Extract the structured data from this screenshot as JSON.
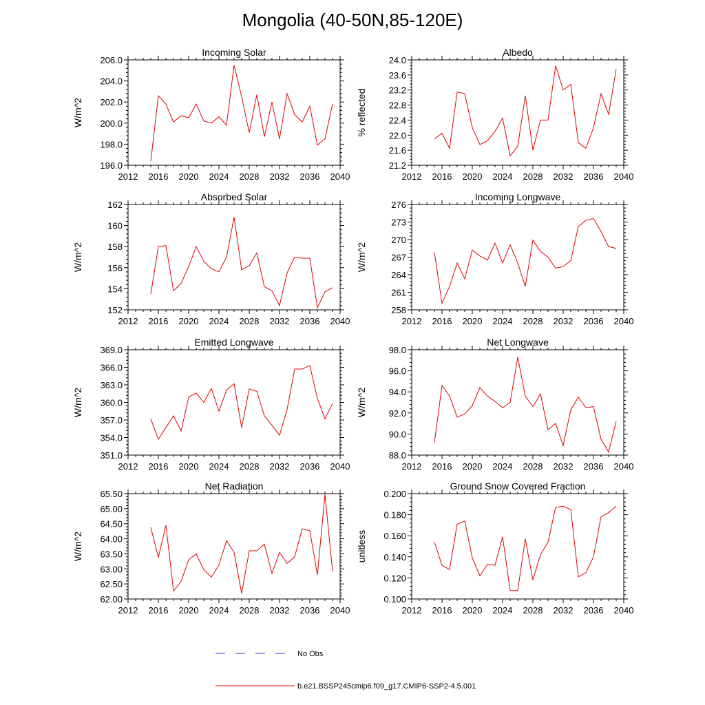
{
  "title": "Mongolia (40-50N,85-120E)",
  "legend": {
    "obs_label": "No Obs",
    "model_label": "b.e21.BSSP245cmip6.f09_g17.CMIP6-SSP2-4.5.001",
    "obs_color": "#3344cc",
    "model_color": "#e00000"
  },
  "chart_data": [
    {
      "type": "line",
      "title": "Incoming Solar",
      "ylabel": "W/m^2",
      "xlim": [
        2012,
        2040
      ],
      "ylim": [
        196.0,
        206.0
      ],
      "xticks": [
        "2012",
        "2016",
        "2020",
        "2024",
        "2028",
        "2032",
        "2036",
        "2040"
      ],
      "yticks": [
        "196.0",
        "198.0",
        "200.0",
        "202.0",
        "204.0",
        "206.0"
      ],
      "x": [
        2015,
        2016,
        2017,
        2018,
        2019,
        2020,
        2021,
        2022,
        2023,
        2024,
        2025,
        2026,
        2027,
        2028,
        2029,
        2030,
        2031,
        2032,
        2033,
        2034,
        2035,
        2036,
        2037,
        2038,
        2039
      ],
      "series": [
        {
          "values": [
            196.4,
            202.6,
            201.8,
            200.1,
            200.7,
            200.5,
            201.8,
            200.2,
            200.0,
            200.6,
            199.8,
            205.5,
            202.5,
            199.1,
            202.7,
            198.7,
            202.0,
            198.5,
            202.8,
            200.8,
            200.1,
            201.6,
            197.9,
            198.5,
            201.8
          ]
        }
      ]
    },
    {
      "type": "line",
      "title": "Albedo",
      "ylabel": "% reflected",
      "xlim": [
        2012,
        2040
      ],
      "ylim": [
        21.2,
        24.0
      ],
      "xticks": [
        "2012",
        "2016",
        "2020",
        "2024",
        "2028",
        "2032",
        "2036",
        "2040"
      ],
      "yticks": [
        "21.2",
        "21.6",
        "22.0",
        "22.4",
        "22.8",
        "23.2",
        "23.6",
        "24.0"
      ],
      "x": [
        2015,
        2016,
        2017,
        2018,
        2019,
        2020,
        2021,
        2022,
        2023,
        2024,
        2025,
        2026,
        2027,
        2028,
        2029,
        2030,
        2031,
        2032,
        2033,
        2034,
        2035,
        2036,
        2037,
        2038,
        2039
      ],
      "series": [
        {
          "values": [
            21.9,
            22.05,
            21.65,
            23.15,
            23.1,
            22.2,
            21.75,
            21.85,
            22.1,
            22.45,
            21.45,
            21.7,
            23.05,
            21.6,
            22.4,
            22.4,
            23.85,
            23.2,
            23.35,
            21.8,
            21.65,
            22.2,
            23.1,
            22.55,
            23.75
          ]
        }
      ]
    },
    {
      "type": "line",
      "title": "Absorbed Solar",
      "ylabel": "W/m^2",
      "xlim": [
        2012,
        2040
      ],
      "ylim": [
        152,
        162
      ],
      "xticks": [
        "2012",
        "2016",
        "2020",
        "2024",
        "2028",
        "2032",
        "2036",
        "2040"
      ],
      "yticks": [
        "152",
        "154",
        "156",
        "158",
        "160",
        "162"
      ],
      "x": [
        2015,
        2016,
        2017,
        2018,
        2019,
        2020,
        2021,
        2022,
        2023,
        2024,
        2025,
        2026,
        2027,
        2028,
        2029,
        2030,
        2031,
        2032,
        2033,
        2034,
        2035,
        2036,
        2037,
        2038,
        2039
      ],
      "series": [
        {
          "values": [
            153.5,
            158.0,
            158.1,
            153.8,
            154.5,
            156.1,
            158.0,
            156.6,
            155.9,
            155.6,
            157.0,
            160.8,
            155.8,
            156.2,
            157.4,
            154.2,
            153.8,
            152.4,
            155.5,
            157.0,
            156.9,
            156.9,
            152.2,
            153.7,
            154.1
          ]
        }
      ]
    },
    {
      "type": "line",
      "title": "Incoming Longwave",
      "ylabel": "W/m^2",
      "xlim": [
        2012,
        2040
      ],
      "ylim": [
        258,
        276
      ],
      "xticks": [
        "2012",
        "2016",
        "2020",
        "2024",
        "2028",
        "2032",
        "2036",
        "2040"
      ],
      "yticks": [
        "258",
        "261",
        "264",
        "267",
        "270",
        "273",
        "276"
      ],
      "x": [
        2015,
        2016,
        2017,
        2018,
        2019,
        2020,
        2021,
        2022,
        2023,
        2024,
        2025,
        2026,
        2027,
        2028,
        2029,
        2030,
        2031,
        2032,
        2033,
        2034,
        2035,
        2036,
        2037,
        2038,
        2039
      ],
      "series": [
        {
          "values": [
            267.8,
            259.1,
            262.0,
            266.0,
            263.3,
            268.2,
            267.2,
            266.5,
            269.4,
            266.0,
            269.1,
            266.0,
            262.0,
            269.9,
            268.0,
            267.0,
            265.1,
            265.4,
            266.4,
            272.2,
            273.3,
            273.6,
            271.4,
            268.8,
            268.5
          ]
        }
      ]
    },
    {
      "type": "line",
      "title": "Emitted Longwave",
      "ylabel": "W/m^2",
      "xlim": [
        2012,
        2040
      ],
      "ylim": [
        351.0,
        369.0
      ],
      "xticks": [
        "2012",
        "2016",
        "2020",
        "2024",
        "2028",
        "2032",
        "2036",
        "2040"
      ],
      "yticks": [
        "351.0",
        "354.0",
        "357.0",
        "360.0",
        "363.0",
        "366.0",
        "369.0"
      ],
      "x": [
        2015,
        2016,
        2017,
        2018,
        2019,
        2020,
        2021,
        2022,
        2023,
        2024,
        2025,
        2026,
        2027,
        2028,
        2029,
        2030,
        2031,
        2032,
        2033,
        2034,
        2035,
        2036,
        2037,
        2038,
        2039
      ],
      "series": [
        {
          "values": [
            357.2,
            353.7,
            355.7,
            357.7,
            355.1,
            360.9,
            361.6,
            360.0,
            362.4,
            358.5,
            362.1,
            363.2,
            355.7,
            362.3,
            361.9,
            357.7,
            356.1,
            354.4,
            358.8,
            365.7,
            365.7,
            366.3,
            360.7,
            357.2,
            359.8
          ]
        }
      ]
    },
    {
      "type": "line",
      "title": "Net Longwave",
      "ylabel": "W/m^2",
      "xlim": [
        2012,
        2040
      ],
      "ylim": [
        88.0,
        98.0
      ],
      "xticks": [
        "2012",
        "2016",
        "2020",
        "2024",
        "2028",
        "2032",
        "2036",
        "2040"
      ],
      "yticks": [
        "88.0",
        "90.0",
        "92.0",
        "94.0",
        "96.0",
        "98.0"
      ],
      "x": [
        2015,
        2016,
        2017,
        2018,
        2019,
        2020,
        2021,
        2022,
        2023,
        2024,
        2025,
        2026,
        2027,
        2028,
        2029,
        2030,
        2031,
        2032,
        2033,
        2034,
        2035,
        2036,
        2037,
        2038,
        2039
      ],
      "series": [
        {
          "values": [
            89.2,
            94.6,
            93.6,
            91.6,
            91.9,
            92.7,
            94.4,
            93.6,
            93.1,
            92.5,
            93.0,
            97.3,
            93.6,
            92.6,
            93.8,
            90.4,
            91.0,
            88.9,
            92.3,
            93.5,
            92.5,
            92.6,
            89.5,
            88.3,
            91.2
          ]
        }
      ]
    },
    {
      "type": "line",
      "title": "Net Radiation",
      "ylabel": "W/m^2",
      "xlim": [
        2012,
        2040
      ],
      "ylim": [
        62.0,
        65.5
      ],
      "xticks": [
        "2012",
        "2016",
        "2020",
        "2024",
        "2028",
        "2032",
        "2036",
        "2040"
      ],
      "yticks": [
        "62.00",
        "62.50",
        "63.00",
        "63.50",
        "64.00",
        "64.50",
        "65.00",
        "65.50"
      ],
      "x": [
        2015,
        2016,
        2017,
        2018,
        2019,
        2020,
        2021,
        2022,
        2023,
        2024,
        2025,
        2026,
        2027,
        2028,
        2029,
        2030,
        2031,
        2032,
        2033,
        2034,
        2035,
        2036,
        2037,
        2038,
        2039
      ],
      "series": [
        {
          "values": [
            64.38,
            63.38,
            64.45,
            62.27,
            62.58,
            63.3,
            63.5,
            62.97,
            62.73,
            63.13,
            63.93,
            63.55,
            62.18,
            63.6,
            63.6,
            63.82,
            62.85,
            63.55,
            63.18,
            63.4,
            64.33,
            64.27,
            62.8,
            65.47,
            62.92
          ]
        }
      ]
    },
    {
      "type": "line",
      "title": "Ground Snow Covered Fraction",
      "ylabel": "unitless",
      "xlim": [
        2012,
        2040
      ],
      "ylim": [
        0.1,
        0.2
      ],
      "xticks": [
        "2012",
        "2016",
        "2020",
        "2024",
        "2028",
        "2032",
        "2036",
        "2040"
      ],
      "yticks": [
        "0.100",
        "0.120",
        "0.140",
        "0.160",
        "0.180",
        "0.200"
      ],
      "x": [
        2015,
        2016,
        2017,
        2018,
        2019,
        2020,
        2021,
        2022,
        2023,
        2024,
        2025,
        2026,
        2027,
        2028,
        2029,
        2030,
        2031,
        2032,
        2033,
        2034,
        2035,
        2036,
        2037,
        2038,
        2039
      ],
      "series": [
        {
          "values": [
            0.154,
            0.132,
            0.128,
            0.171,
            0.174,
            0.139,
            0.122,
            0.133,
            0.132,
            0.159,
            0.108,
            0.108,
            0.157,
            0.118,
            0.142,
            0.154,
            0.187,
            0.188,
            0.185,
            0.121,
            0.125,
            0.14,
            0.178,
            0.182,
            0.188
          ]
        }
      ]
    }
  ]
}
